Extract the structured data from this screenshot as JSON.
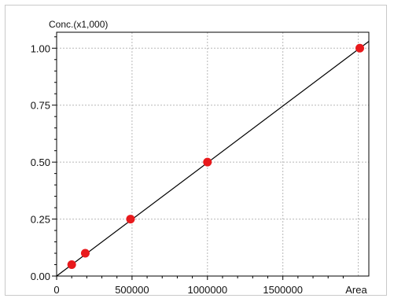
{
  "chart_data": {
    "type": "scatter",
    "ylabel": "Conc.(x1,000)",
    "xlabel": "Area",
    "x_ticks": [
      0,
      500000,
      1000000,
      1500000
    ],
    "x_tick_labels": [
      "0",
      "500000",
      "1000000",
      "1500000"
    ],
    "y_ticks": [
      0.0,
      0.25,
      0.5,
      0.75,
      1.0
    ],
    "y_tick_labels": [
      "0.00",
      "0.25",
      "0.50",
      "0.75",
      "1.00"
    ],
    "xlim": [
      0,
      2070000
    ],
    "ylim": [
      0,
      1.07
    ],
    "grid": true,
    "series": [
      {
        "x": [
          100000,
          190000,
          490000,
          1000000,
          2010000
        ],
        "y": [
          0.05,
          0.1,
          0.25,
          0.5,
          1.0
        ]
      }
    ],
    "fit_line": {
      "x": [
        0,
        2070000
      ],
      "y": [
        0,
        1.03
      ]
    },
    "point_color": "#e8191c",
    "line_color": "#000000",
    "grid_color": "#b8b8b8"
  }
}
